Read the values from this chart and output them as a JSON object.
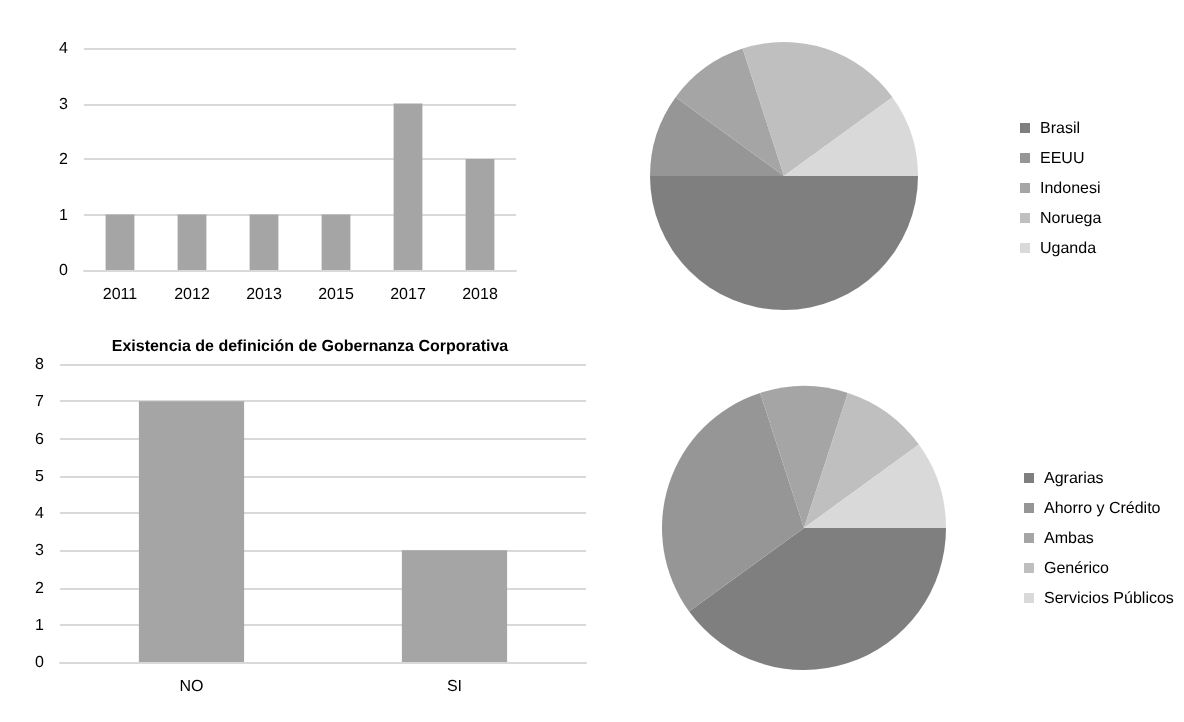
{
  "chart_data": [
    {
      "type": "bar",
      "categories": [
        "2011",
        "2012",
        "2013",
        "2015",
        "2017",
        "2018"
      ],
      "values": [
        1,
        1,
        1,
        1,
        3,
        2
      ],
      "color": "#a5a5a5",
      "ylim": [
        0,
        4
      ],
      "yticks": [
        0,
        1,
        2,
        3,
        4
      ],
      "grid": "y"
    },
    {
      "type": "pie",
      "categories": [
        "Brasil",
        "EEUU",
        "Indonesi",
        "Noruega",
        "Uganda"
      ],
      "values": [
        50,
        10,
        10,
        20,
        10
      ],
      "colors": [
        "#7f7f7f",
        "#969696",
        "#a5a5a5",
        "#bfbfbf",
        "#d9d9d9"
      ],
      "legend": "right"
    },
    {
      "type": "bar",
      "title": "Existencia de definición de Gobernanza Corporativa",
      "categories": [
        "NO",
        "SI"
      ],
      "values": [
        7,
        3
      ],
      "color": "#a5a5a5",
      "ylim": [
        0,
        8
      ],
      "yticks": [
        0,
        1,
        2,
        3,
        4,
        5,
        6,
        7,
        8
      ],
      "grid": "y"
    },
    {
      "type": "pie",
      "categories": [
        "Agrarias",
        "Ahorro y Crédito",
        "Ambas",
        "Genérico",
        "Servicios Públicos"
      ],
      "values": [
        40,
        30,
        10,
        10,
        10
      ],
      "colors": [
        "#7f7f7f",
        "#969696",
        "#a5a5a5",
        "#bfbfbf",
        "#d9d9d9"
      ],
      "legend": "right"
    }
  ]
}
